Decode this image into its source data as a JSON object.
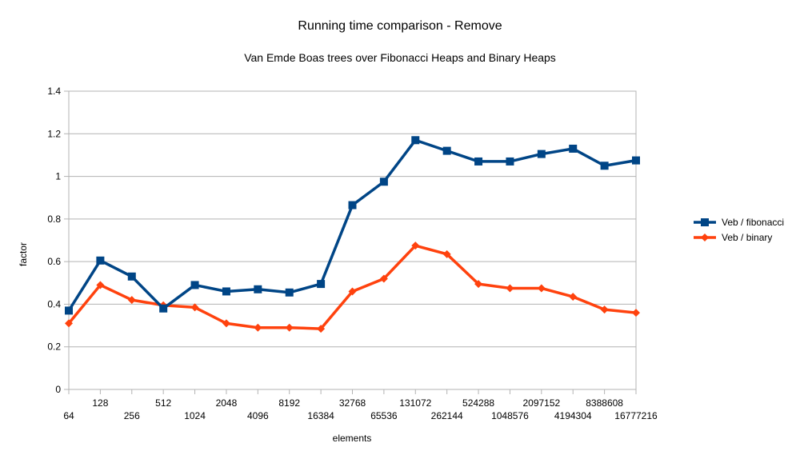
{
  "chart_data": {
    "type": "line",
    "title": "Running time comparison - Remove",
    "subtitle": "Van Emde Boas trees over Fibonacci Heaps and Binary Heaps",
    "xlabel": "elements",
    "ylabel": "factor",
    "ylim": [
      0,
      1.4
    ],
    "yticks": [
      "0",
      "0.2",
      "0.4",
      "0.6",
      "0.8",
      "1",
      "1.2",
      "1.4"
    ],
    "grid": true,
    "legend_position": "right",
    "categories": [
      "64",
      "128",
      "256",
      "512",
      "1024",
      "2048",
      "4096",
      "8192",
      "16384",
      "32768",
      "65536",
      "131072",
      "262144",
      "524288",
      "1048576",
      "2097152",
      "4194304",
      "8388608",
      "16777216"
    ],
    "series": [
      {
        "name": "Veb / fibonacci",
        "color": "#004586",
        "marker": "square",
        "values": [
          0.37,
          0.605,
          0.53,
          0.38,
          0.49,
          0.46,
          0.47,
          0.455,
          0.495,
          0.865,
          0.975,
          1.17,
          1.12,
          1.07,
          1.07,
          1.105,
          1.13,
          1.05,
          1.075
        ]
      },
      {
        "name": "Veb / binary",
        "color": "#ff420e",
        "marker": "diamond",
        "values": [
          0.31,
          0.49,
          0.42,
          0.395,
          0.385,
          0.31,
          0.29,
          0.29,
          0.285,
          0.46,
          0.52,
          0.675,
          0.635,
          0.495,
          0.475,
          0.475,
          0.435,
          0.375,
          0.36
        ]
      }
    ]
  }
}
